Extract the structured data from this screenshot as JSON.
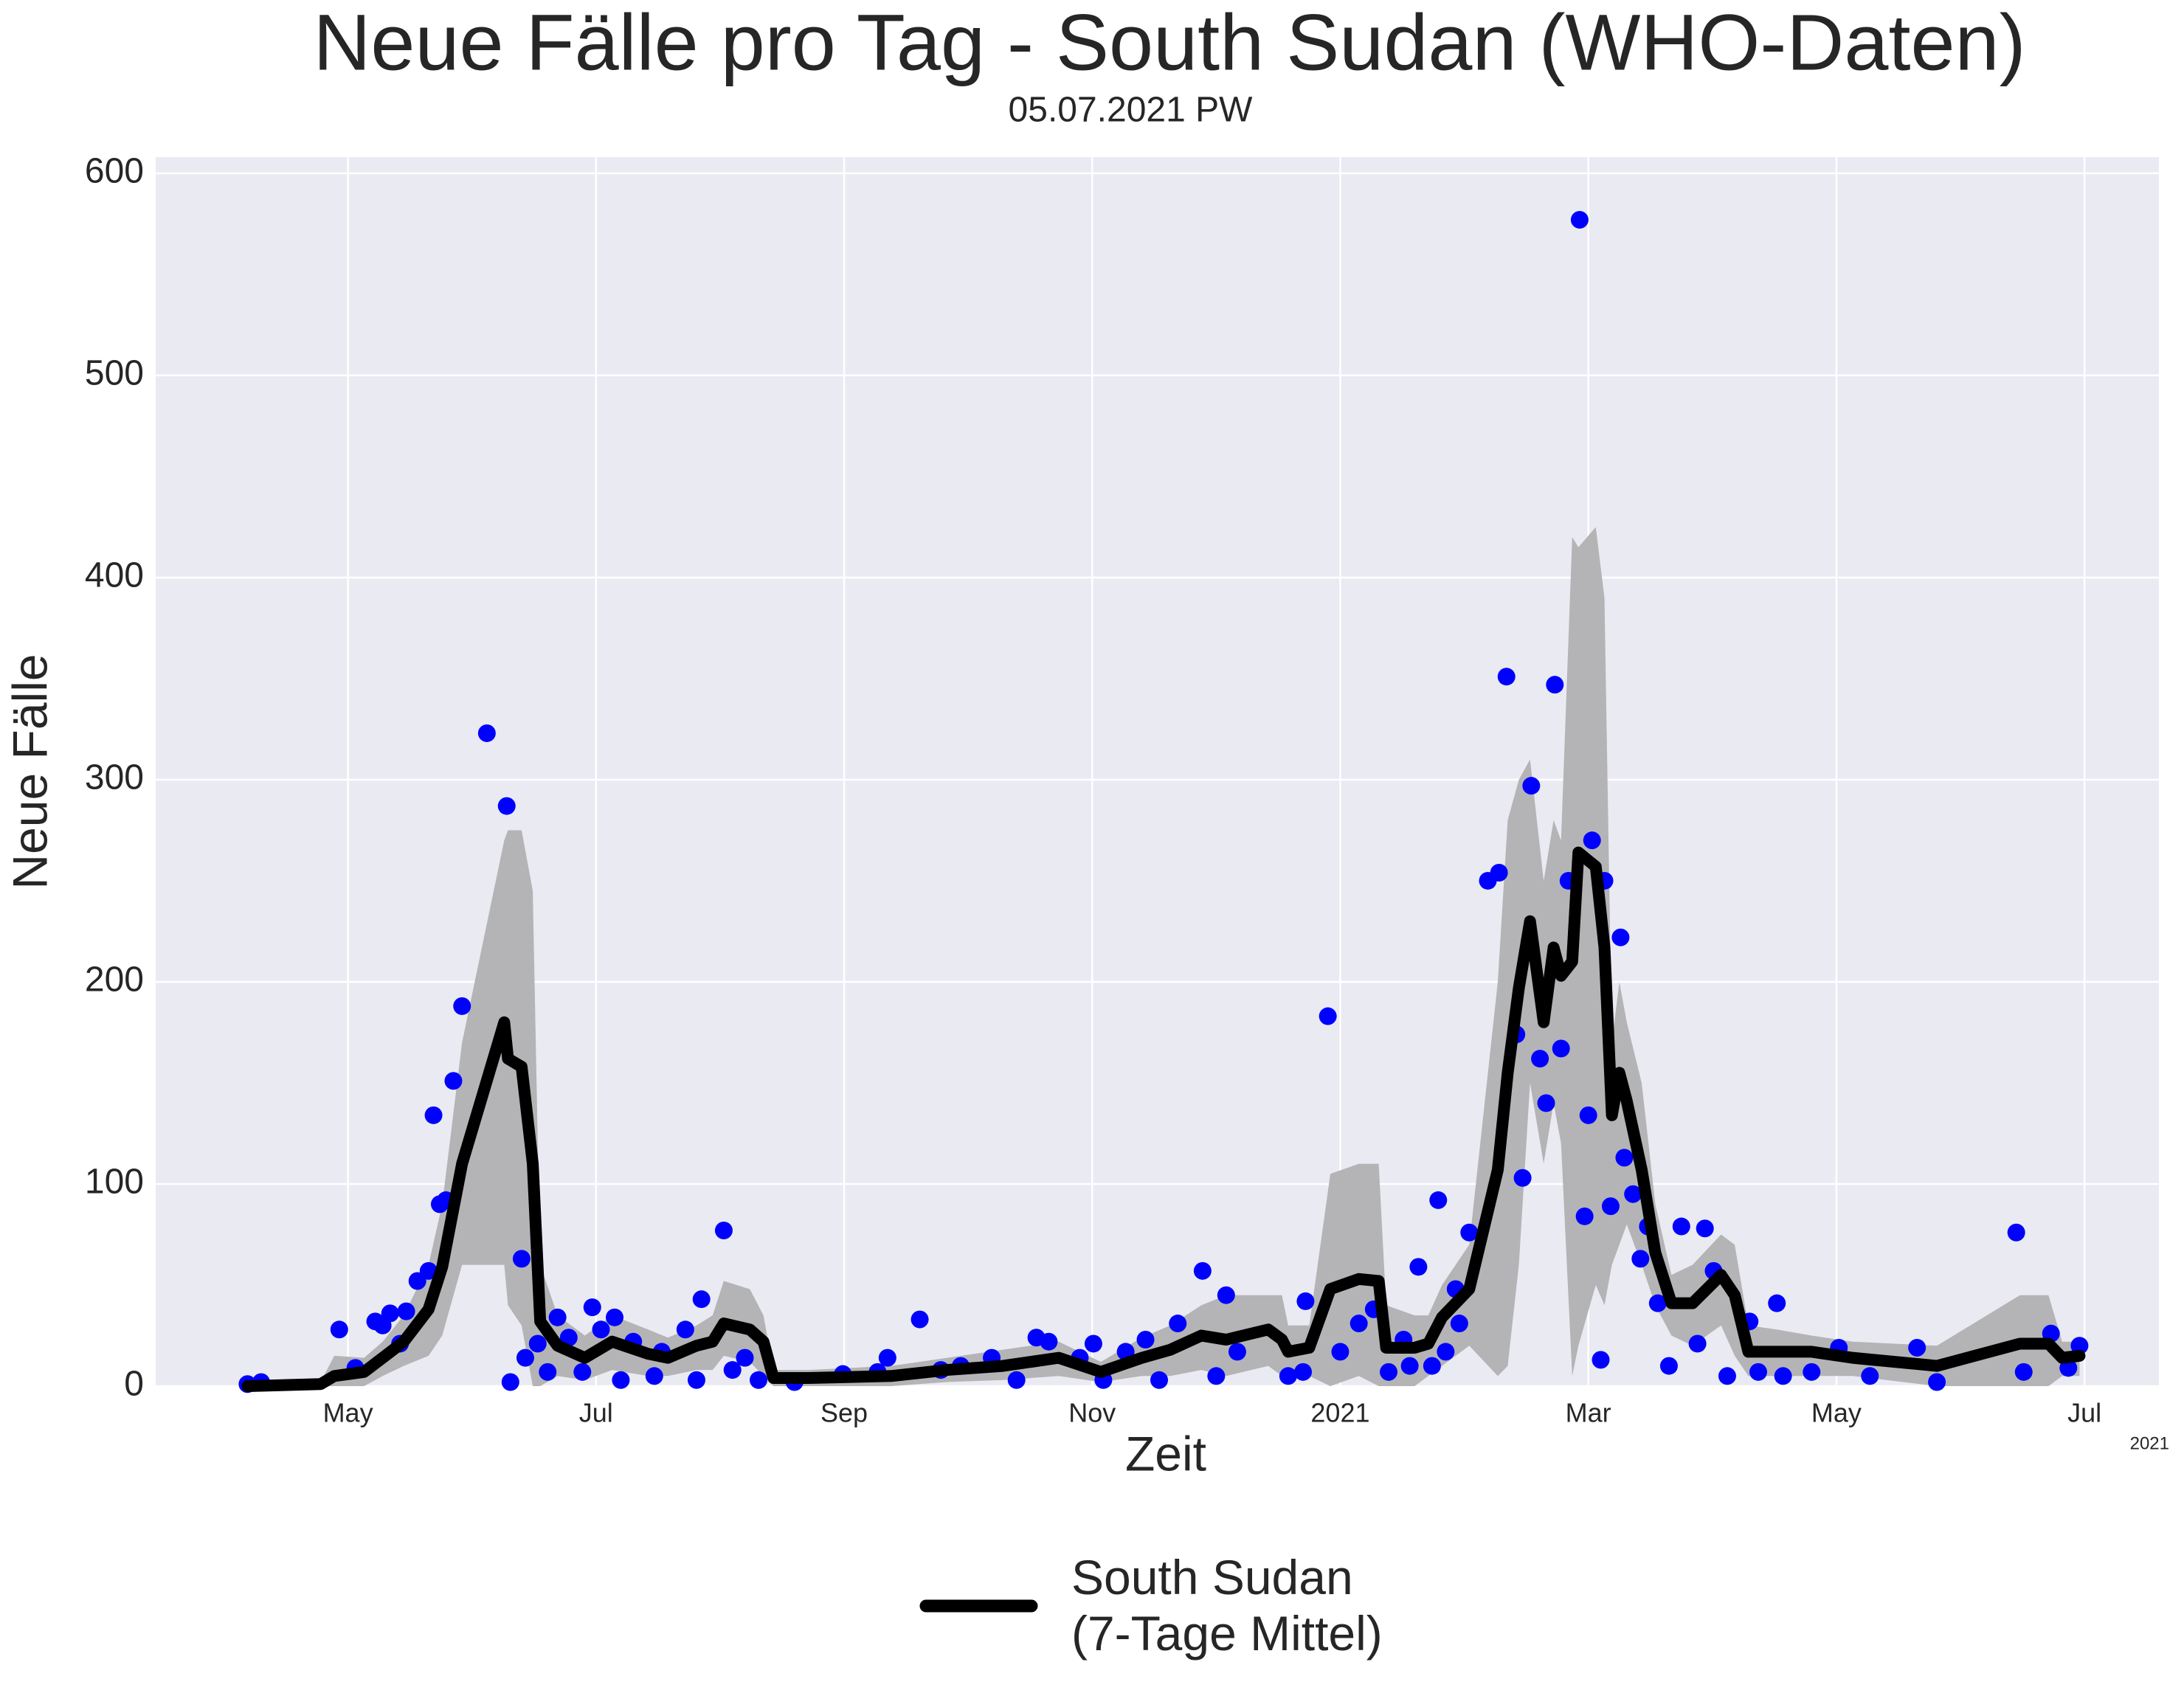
{
  "chart_data": {
    "type": "line",
    "title": "Neue Fälle pro Tag - South Sudan (WHO-Daten)",
    "subtitle": "05.07.2021 PW",
    "x_label": "Zeit",
    "y_label": "Neue Fälle",
    "x_offset_label": "2021",
    "xlim": [
      2.45,
      18.6
    ],
    "xticks": [
      {
        "value": 4,
        "label": "May"
      },
      {
        "value": 6,
        "label": "Jul"
      },
      {
        "value": 8,
        "label": "Sep"
      },
      {
        "value": 10,
        "label": "Nov"
      },
      {
        "value": 12,
        "label": "2021"
      },
      {
        "value": 14,
        "label": "Mar"
      },
      {
        "value": 16,
        "label": "May"
      },
      {
        "value": 18,
        "label": "Jul"
      }
    ],
    "ylim": [
      0,
      608
    ],
    "yticks": [
      0,
      100,
      200,
      300,
      400,
      500,
      600
    ],
    "grid": true,
    "legend_position": "bottom",
    "series": [
      {
        "type": "scatter",
        "color": "#0000ff",
        "x": [
          3.19,
          3.3,
          3.93,
          4.06,
          4.22,
          4.28,
          4.34,
          4.47,
          4.42,
          4.56,
          4.65,
          4.69,
          4.74,
          4.79,
          4.85,
          4.92,
          5.12,
          5.28,
          5.31,
          5.4,
          5.43,
          5.53,
          5.61,
          5.69,
          5.78,
          5.89,
          5.97,
          6.04,
          6.15,
          6.2,
          6.3,
          6.47,
          6.53,
          6.72,
          6.81,
          6.85,
          7.03,
          7.1,
          7.2,
          7.31,
          7.6,
          7.99,
          8.27,
          8.35,
          8.61,
          8.78,
          8.94,
          9.19,
          9.39,
          9.55,
          9.65,
          9.9,
          10.01,
          10.09,
          10.27,
          10.43,
          10.54,
          10.69,
          10.89,
          11.0,
          11.08,
          11.17,
          11.58,
          11.7,
          11.72,
          11.9,
          12.0,
          12.15,
          12.27,
          12.39,
          12.51,
          12.56,
          12.63,
          12.74,
          12.79,
          12.85,
          12.93,
          12.96,
          13.04,
          13.19,
          13.28,
          13.34,
          13.42,
          13.47,
          13.54,
          13.61,
          13.66,
          13.73,
          13.78,
          13.84,
          13.93,
          13.97,
          14.0,
          14.03,
          14.1,
          14.13,
          14.18,
          14.26,
          14.29,
          14.36,
          14.42,
          14.48,
          14.56,
          14.65,
          14.75,
          14.88,
          14.94,
          15.01,
          15.12,
          15.3,
          15.37,
          15.52,
          15.57,
          15.8,
          16.02,
          16.27,
          16.65,
          16.81,
          17.45,
          17.51,
          17.73,
          17.87,
          17.96
        ],
        "values": [
          1,
          2,
          28,
          9,
          32,
          30,
          36,
          37,
          21,
          52,
          57,
          134,
          90,
          92,
          151,
          188,
          323,
          287,
          2,
          63,
          14,
          21,
          7,
          34,
          24,
          7,
          39,
          28,
          34,
          3,
          22,
          5,
          17,
          28,
          3,
          43,
          77,
          8,
          14,
          3,
          2,
          6,
          7,
          14,
          33,
          8,
          10,
          14,
          3,
          24,
          22,
          14,
          21,
          3,
          17,
          23,
          3,
          31,
          57,
          5,
          45,
          17,
          5,
          7,
          42,
          183,
          17,
          31,
          38,
          7,
          23,
          10,
          59,
          10,
          92,
          17,
          48,
          31,
          76,
          250,
          254,
          351,
          174,
          103,
          297,
          162,
          140,
          347,
          167,
          250,
          577,
          84,
          134,
          270,
          13,
          250,
          89,
          222,
          113,
          95,
          63,
          79,
          41,
          10,
          79,
          21,
          78,
          57,
          5,
          32,
          7,
          41,
          5,
          7,
          19,
          5,
          19,
          2,
          76,
          7,
          26,
          9,
          20
        ]
      },
      {
        "type": "line",
        "name": "South Sudan\n(7-Tage Mittel)",
        "color": "#000000",
        "band_color": "#b4b4b6",
        "x": [
          3.19,
          3.78,
          3.89,
          4.13,
          4.28,
          4.45,
          4.65,
          4.76,
          4.92,
          5.26,
          5.29,
          5.4,
          5.49,
          5.55,
          5.69,
          5.91,
          6.13,
          6.42,
          6.58,
          6.81,
          6.94,
          7.03,
          7.24,
          7.35,
          7.43,
          7.71,
          8.38,
          8.83,
          9.28,
          9.73,
          10.07,
          10.4,
          10.63,
          10.88,
          11.08,
          11.42,
          11.53,
          11.58,
          11.75,
          11.92,
          12.15,
          12.31,
          12.37,
          12.6,
          12.71,
          12.82,
          13.04,
          13.27,
          13.35,
          13.44,
          13.53,
          13.64,
          13.72,
          13.78,
          13.87,
          13.92,
          14.06,
          14.13,
          14.19,
          14.25,
          14.31,
          14.43,
          14.54,
          14.67,
          14.84,
          15.07,
          15.18,
          15.29,
          15.52,
          15.8,
          16.13,
          16.81,
          17.48,
          17.71,
          17.82,
          17.96
        ],
        "values": [
          0,
          1,
          5,
          7,
          14,
          22,
          38,
          59,
          110,
          180,
          162,
          158,
          110,
          32,
          20,
          14,
          22,
          16,
          14,
          20,
          22,
          31,
          28,
          22,
          4,
          4,
          5,
          8,
          10,
          14,
          7,
          14,
          18,
          25,
          23,
          28,
          23,
          17,
          19,
          48,
          53,
          52,
          19,
          19,
          21,
          34,
          48,
          107,
          155,
          197,
          230,
          180,
          217,
          203,
          210,
          264,
          257,
          217,
          134,
          155,
          141,
          107,
          66,
          41,
          41,
          55,
          45,
          17,
          17,
          17,
          14,
          10,
          21,
          21,
          14,
          15
        ],
        "band_low": [
          0,
          0,
          0,
          0,
          5,
          10,
          15,
          25,
          60,
          60,
          40,
          30,
          0,
          0,
          5,
          3,
          8,
          5,
          5,
          8,
          8,
          15,
          12,
          5,
          0,
          0,
          0,
          2,
          3,
          5,
          2,
          5,
          5,
          8,
          5,
          10,
          5,
          5,
          5,
          0,
          5,
          0,
          0,
          0,
          5,
          10,
          20,
          5,
          10,
          60,
          150,
          110,
          140,
          120,
          5,
          20,
          50,
          40,
          60,
          70,
          80,
          60,
          40,
          25,
          20,
          30,
          15,
          5,
          5,
          5,
          5,
          0,
          0,
          0,
          5,
          5
        ],
        "band_high": [
          0,
          2,
          15,
          14,
          22,
          35,
          60,
          90,
          170,
          270,
          275,
          275,
          245,
          60,
          35,
          25,
          35,
          28,
          24,
          30,
          35,
          52,
          48,
          35,
          8,
          8,
          10,
          14,
          18,
          22,
          12,
          24,
          30,
          40,
          45,
          45,
          45,
          30,
          30,
          105,
          110,
          110,
          40,
          35,
          35,
          50,
          70,
          200,
          280,
          300,
          310,
          250,
          280,
          270,
          420,
          415,
          425,
          390,
          170,
          200,
          180,
          150,
          90,
          55,
          60,
          75,
          70,
          30,
          28,
          25,
          22,
          20,
          45,
          45,
          22,
          22
        ]
      }
    ]
  }
}
